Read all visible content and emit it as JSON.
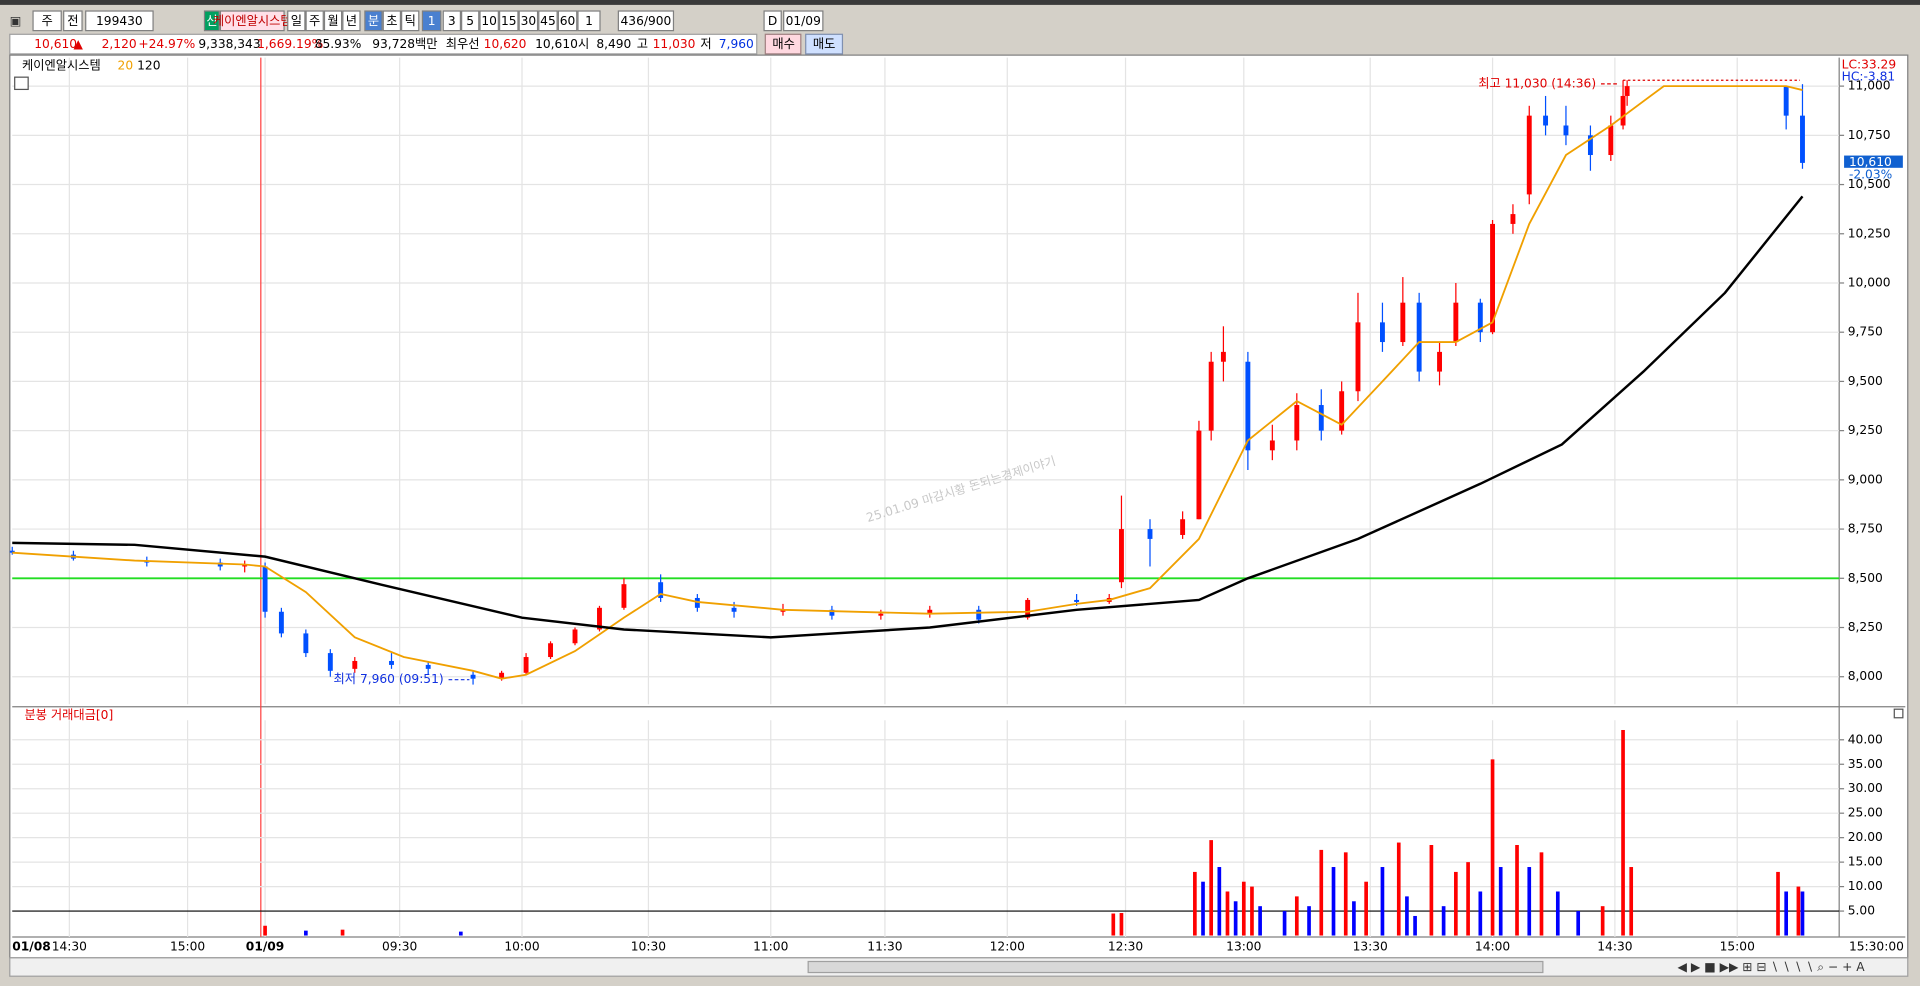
{
  "toolbar": {
    "row1": [
      "주",
      "전",
      "199430",
      "신",
      "케이엔알시스템",
      "일",
      "주",
      "월",
      "년",
      "분",
      "초",
      "틱",
      "1",
      "3",
      "5",
      "10",
      "15",
      "30",
      "45",
      "60",
      "1",
      "436/900",
      "D",
      "01/09"
    ],
    "row2": [
      "10,610",
      "▲",
      "2,120",
      "+24.97%",
      "9,338,343",
      "1,669.19%",
      "85.93%",
      "93,728백만",
      "최우선",
      "10,620",
      "10,610",
      "시",
      "8,490",
      "고",
      "11,030",
      "저",
      "7,960",
      "매수",
      "매도"
    ]
  },
  "chart_data": [
    {
      "type": "candlestick",
      "title": "케이엔알시스템",
      "xlim": [
        0,
        448
      ],
      "xticks": [
        {
          "value": 14,
          "label": "14:30"
        },
        {
          "value": 43,
          "label": "15:00"
        },
        {
          "value": 62,
          "label": "01/09"
        },
        {
          "value": 95,
          "label": "09:30"
        },
        {
          "value": 125,
          "label": "10:00"
        },
        {
          "value": 156,
          "label": "10:30"
        },
        {
          "value": 186,
          "label": "11:00"
        },
        {
          "value": 214,
          "label": "11:30"
        },
        {
          "value": 244,
          "label": "12:00"
        },
        {
          "value": 273,
          "label": "12:30"
        },
        {
          "value": 302,
          "label": "13:00"
        },
        {
          "value": 333,
          "label": "13:30"
        },
        {
          "value": 363,
          "label": "14:00"
        },
        {
          "value": 393,
          "label": "14:30"
        },
        {
          "value": 423,
          "label": "15:00"
        }
      ],
      "start_label": "01/08",
      "end_label": "15:30:00",
      "ylim": [
        7860,
        11145
      ],
      "yticks": [
        {
          "value": 8000,
          "label": "8,000"
        },
        {
          "value": 8250,
          "label": "8,250"
        },
        {
          "value": 8500,
          "label": "8,500"
        },
        {
          "value": 8750,
          "label": "8,750"
        },
        {
          "value": 9000,
          "label": "9,000"
        },
        {
          "value": 9250,
          "label": "9,250"
        },
        {
          "value": 9500,
          "label": "9,500"
        },
        {
          "value": 9750,
          "label": "9,750"
        },
        {
          "value": 10000,
          "label": "10,000"
        },
        {
          "value": 10250,
          "label": "10,250"
        },
        {
          "value": 10500,
          "label": "10,500"
        },
        {
          "value": 10750,
          "label": "10,750"
        },
        {
          "value": 11000,
          "label": "11,000"
        }
      ],
      "grid": true,
      "up_color": "#ff0000",
      "down_color": "#0050ff",
      "candles": [
        [
          0,
          8640,
          8660,
          8620,
          8630
        ],
        [
          15,
          8620,
          8640,
          8590,
          8600
        ],
        [
          33,
          8590,
          8610,
          8560,
          8580
        ],
        [
          51,
          8580,
          8600,
          8540,
          8560
        ],
        [
          57,
          8560,
          8590,
          8530,
          8570
        ],
        [
          62,
          8560,
          8580,
          8300,
          8330
        ],
        [
          66,
          8330,
          8350,
          8200,
          8220
        ],
        [
          72,
          8220,
          8240,
          8100,
          8120
        ],
        [
          78,
          8120,
          8140,
          8000,
          8030
        ],
        [
          84,
          8040,
          8100,
          8020,
          8080
        ],
        [
          93,
          8080,
          8120,
          8040,
          8060
        ],
        [
          102,
          8060,
          8080,
          8010,
          8040
        ],
        [
          113,
          8010,
          8030,
          7960,
          7990
        ],
        [
          120,
          7990,
          8030,
          7980,
          8020
        ],
        [
          126,
          8020,
          8120,
          8010,
          8100
        ],
        [
          132,
          8100,
          8180,
          8090,
          8170
        ],
        [
          138,
          8170,
          8250,
          8160,
          8240
        ],
        [
          144,
          8240,
          8360,
          8230,
          8350
        ],
        [
          150,
          8350,
          8500,
          8340,
          8470
        ],
        [
          159,
          8480,
          8520,
          8380,
          8400
        ],
        [
          168,
          8400,
          8420,
          8330,
          8350
        ],
        [
          177,
          8350,
          8380,
          8300,
          8330
        ],
        [
          189,
          8330,
          8370,
          8310,
          8340
        ],
        [
          201,
          8340,
          8360,
          8290,
          8310
        ],
        [
          213,
          8310,
          8340,
          8290,
          8320
        ],
        [
          225,
          8320,
          8360,
          8300,
          8340
        ],
        [
          237,
          8340,
          8360,
          8270,
          8290
        ],
        [
          249,
          8300,
          8400,
          8290,
          8390
        ],
        [
          261,
          8390,
          8420,
          8360,
          8380
        ],
        [
          269,
          8380,
          8420,
          8370,
          8400
        ],
        [
          272,
          8480,
          8920,
          8450,
          8750
        ],
        [
          279,
          8750,
          8800,
          8560,
          8700
        ],
        [
          287,
          8720,
          8840,
          8700,
          8800
        ],
        [
          291,
          8800,
          9300,
          8800,
          9250
        ],
        [
          294,
          9250,
          9650,
          9200,
          9600
        ],
        [
          297,
          9600,
          9780,
          9500,
          9650
        ],
        [
          303,
          9600,
          9650,
          9050,
          9150
        ],
        [
          309,
          9150,
          9280,
          9100,
          9200
        ],
        [
          315,
          9200,
          9440,
          9150,
          9380
        ],
        [
          321,
          9380,
          9460,
          9200,
          9250
        ],
        [
          326,
          9250,
          9500,
          9230,
          9450
        ],
        [
          330,
          9450,
          9950,
          9400,
          9800
        ],
        [
          336,
          9800,
          9900,
          9650,
          9700
        ],
        [
          341,
          9700,
          10030,
          9680,
          9900
        ],
        [
          345,
          9900,
          9950,
          9500,
          9550
        ],
        [
          350,
          9550,
          9700,
          9480,
          9650
        ],
        [
          354,
          9700,
          10000,
          9680,
          9900
        ],
        [
          360,
          9900,
          9920,
          9700,
          9750
        ],
        [
          363,
          9750,
          10320,
          9740,
          10300
        ],
        [
          368,
          10300,
          10400,
          10250,
          10350
        ],
        [
          372,
          10450,
          10900,
          10400,
          10850
        ],
        [
          376,
          10850,
          10950,
          10750,
          10800
        ],
        [
          381,
          10800,
          10900,
          10700,
          10750
        ],
        [
          387,
          10750,
          10800,
          10570,
          10650
        ],
        [
          392,
          10650,
          10850,
          10620,
          10800
        ],
        [
          395,
          10800,
          11030,
          10780,
          10950
        ],
        [
          396,
          10950,
          11030,
          10900,
          11000
        ],
        [
          435,
          11000,
          11000,
          10780,
          10850
        ],
        [
          439,
          10850,
          11010,
          10580,
          10610
        ]
      ],
      "series": [
        {
          "name": "20",
          "color": "#f0a000",
          "x": [
            0,
            30,
            57,
            62,
            72,
            84,
            96,
            113,
            120,
            126,
            138,
            150,
            159,
            168,
            189,
            225,
            249,
            261,
            269,
            279,
            291,
            303,
            315,
            326,
            336,
            345,
            354,
            363,
            372,
            381,
            392,
            405,
            435,
            439
          ],
          "values": [
            8630,
            8590,
            8570,
            8560,
            8430,
            8200,
            8100,
            8030,
            7990,
            8010,
            8130,
            8300,
            8420,
            8380,
            8340,
            8320,
            8330,
            8370,
            8390,
            8450,
            8700,
            9200,
            9400,
            9280,
            9500,
            9700,
            9700,
            9800,
            10300,
            10650,
            10800,
            11000,
            11000,
            10980
          ]
        },
        {
          "name": "120",
          "color": "#000000",
          "x": [
            0,
            30,
            62,
            90,
            125,
            150,
            186,
            225,
            261,
            291,
            303,
            330,
            360,
            380,
            400,
            420,
            439
          ],
          "values": [
            8680,
            8670,
            8610,
            8470,
            8300,
            8240,
            8200,
            8250,
            8340,
            8390,
            8500,
            8700,
            8980,
            9180,
            9550,
            9950,
            10440
          ]
        }
      ],
      "hline": {
        "value": 8500,
        "color": "#22dd22"
      },
      "annotations": [
        {
          "text": "최고 11,030 (14:36)",
          "x": 395,
          "y": 11030,
          "color": "#e00000"
        },
        {
          "text": "최저 7,960 (09:51)",
          "x": 113,
          "y": 7960,
          "color": "#1030e0"
        }
      ],
      "last_label": "10,610",
      "last_change": "-2.03%",
      "lc": "LC:33.29",
      "hc": "HC:-3.81",
      "watermark": "25.01.09 마감시황 돈되는경제이야기"
    },
    {
      "type": "bar",
      "title": "분봉 거래대금[0]",
      "ylim": [
        -0.3,
        44
      ],
      "yticks": [
        {
          "value": 5,
          "label": "5.00"
        },
        {
          "value": 10,
          "label": "10.00"
        },
        {
          "value": 15,
          "label": "15.00"
        },
        {
          "value": 20,
          "label": "20.00"
        },
        {
          "value": 25,
          "label": "25.00"
        },
        {
          "value": 30,
          "label": "30.00"
        },
        {
          "value": 35,
          "label": "35.00"
        },
        {
          "value": 40,
          "label": "40.00"
        }
      ],
      "hline": 5,
      "x": [
        62,
        72,
        81,
        110,
        270,
        272,
        290,
        292,
        294,
        296,
        298,
        300,
        302,
        304,
        306,
        312,
        315,
        318,
        321,
        324,
        327,
        329,
        332,
        336,
        340,
        342,
        344,
        348,
        351,
        354,
        357,
        360,
        363,
        365,
        369,
        372,
        375,
        379,
        384,
        390,
        395,
        397,
        433,
        435,
        438,
        439
      ],
      "values": [
        2,
        1,
        1.2,
        0.8,
        4.5,
        4.6,
        13,
        11,
        19.5,
        14,
        9,
        7,
        11,
        10,
        6,
        5,
        8,
        6,
        17.5,
        14,
        17,
        7,
        11,
        14,
        19,
        8,
        4,
        18.5,
        6,
        13,
        15,
        9,
        36,
        14,
        18.5,
        14,
        17,
        9,
        5,
        6,
        42,
        14,
        13,
        9,
        10,
        9
      ],
      "colors": [
        "#ff0000",
        "#0000ff",
        "#ff0000",
        "#0000ff",
        "#ff0000",
        "#ff0000",
        "#ff0000",
        "#0000ff",
        "#ff0000",
        "#0000ff",
        "#ff0000",
        "#0000ff",
        "#ff0000",
        "#ff0000",
        "#0000ff",
        "#0000ff",
        "#ff0000",
        "#0000ff",
        "#ff0000",
        "#0000ff",
        "#ff0000",
        "#0000ff",
        "#ff0000",
        "#0000ff",
        "#ff0000",
        "#0000ff",
        "#0000ff",
        "#ff0000",
        "#0000ff",
        "#ff0000",
        "#ff0000",
        "#0000ff",
        "#ff0000",
        "#0000ff",
        "#ff0000",
        "#0000ff",
        "#ff0000",
        "#0000ff",
        "#0000ff",
        "#ff0000",
        "#ff0000",
        "#ff0000",
        "#ff0000",
        "#0000ff",
        "#ff0000",
        "#0000ff"
      ]
    }
  ]
}
